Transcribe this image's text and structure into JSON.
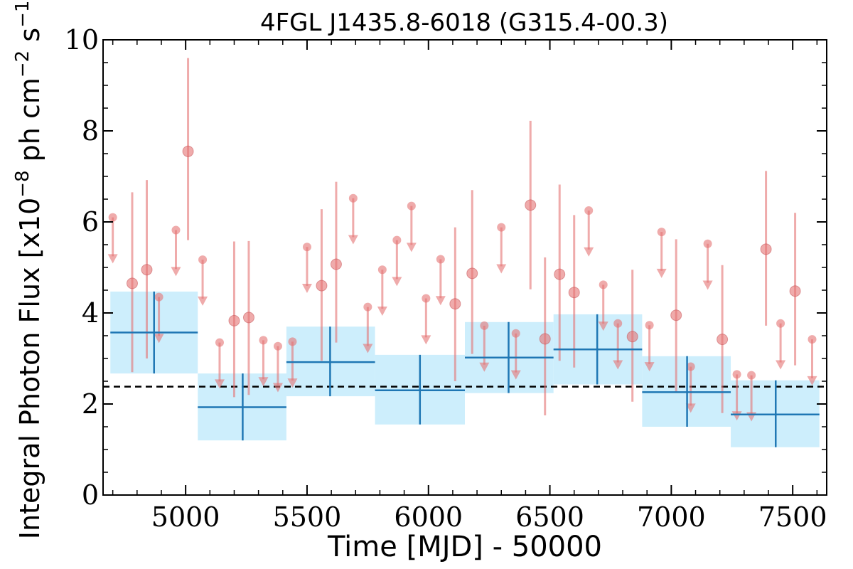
{
  "chart_data": {
    "type": "scatter",
    "title": "4FGL J1435.8-6018 (G315.4-00.3)",
    "xlabel": "Time [MJD] - 50000",
    "ylabel": "Integral Photon Flux [x10",
    "ylabel_exponent": "−8",
    "ylabel_unit": " ph cm",
    "ylabel_unit_exponent": "−2",
    "ylabel_tail": " s",
    "ylabel_tail_exponent": "−1",
    "ylabel_close": "]",
    "xlim": [
      4660,
      7640
    ],
    "ylim": [
      0,
      10
    ],
    "x_ticks": [
      5000,
      5500,
      6000,
      6500,
      7000,
      7500
    ],
    "y_ticks": [
      0,
      2,
      4,
      6,
      8,
      10
    ],
    "reference_level": 2.38,
    "colors": {
      "bins": "#1f77b4",
      "bin_band": "#cdeefc",
      "points": "#e57373",
      "reference": "#000000"
    },
    "binned_flux": [
      {
        "x_start": 4690,
        "x_end": 5050,
        "x": 4870,
        "y": 3.57,
        "y_low": 2.67,
        "y_high": 4.47
      },
      {
        "x_start": 5050,
        "x_end": 5415,
        "x": 5235,
        "y": 1.93,
        "y_low": 1.2,
        "y_high": 2.67
      },
      {
        "x_start": 5415,
        "x_end": 5780,
        "x": 5595,
        "y": 2.92,
        "y_low": 2.17,
        "y_high": 3.7
      },
      {
        "x_start": 5780,
        "x_end": 6150,
        "x": 5965,
        "y": 2.3,
        "y_low": 1.55,
        "y_high": 3.08
      },
      {
        "x_start": 6150,
        "x_end": 6515,
        "x": 6330,
        "y": 3.02,
        "y_low": 2.24,
        "y_high": 3.8
      },
      {
        "x_start": 6515,
        "x_end": 6880,
        "x": 6695,
        "y": 3.2,
        "y_low": 2.43,
        "y_high": 3.97
      },
      {
        "x_start": 6880,
        "x_end": 7245,
        "x": 7065,
        "y": 2.26,
        "y_low": 1.5,
        "y_high": 3.05
      },
      {
        "x_start": 7245,
        "x_end": 7610,
        "x": 7430,
        "y": 1.77,
        "y_low": 1.05,
        "y_high": 2.52
      }
    ],
    "detections": [
      {
        "x": 4780,
        "y": 4.65,
        "y_low": 2.7,
        "y_high": 6.65
      },
      {
        "x": 4840,
        "y": 4.95,
        "y_low": 3.0,
        "y_high": 6.92
      },
      {
        "x": 5010,
        "y": 7.55,
        "y_low": 5.6,
        "y_high": 9.6
      },
      {
        "x": 5200,
        "y": 3.83,
        "y_low": 2.15,
        "y_high": 5.57
      },
      {
        "x": 5260,
        "y": 3.9,
        "y_low": 2.2,
        "y_high": 5.58
      },
      {
        "x": 5560,
        "y": 4.6,
        "y_low": 2.95,
        "y_high": 6.28
      },
      {
        "x": 5620,
        "y": 5.07,
        "y_low": 3.35,
        "y_high": 6.88
      },
      {
        "x": 6110,
        "y": 4.2,
        "y_low": 2.5,
        "y_high": 5.88
      },
      {
        "x": 6180,
        "y": 4.87,
        "y_low": 3.1,
        "y_high": 6.7
      },
      {
        "x": 6420,
        "y": 6.37,
        "y_low": 4.52,
        "y_high": 8.22
      },
      {
        "x": 6480,
        "y": 3.43,
        "y_low": 1.75,
        "y_high": 5.22
      },
      {
        "x": 6540,
        "y": 4.85,
        "y_low": 2.95,
        "y_high": 6.82
      },
      {
        "x": 6600,
        "y": 4.45,
        "y_low": 2.8,
        "y_high": 6.15
      },
      {
        "x": 6840,
        "y": 3.48,
        "y_low": 2.05,
        "y_high": 4.95
      },
      {
        "x": 7020,
        "y": 3.95,
        "y_low": 2.25,
        "y_high": 5.62
      },
      {
        "x": 7210,
        "y": 3.42,
        "y_low": 1.8,
        "y_high": 5.05
      },
      {
        "x": 7390,
        "y": 5.4,
        "y_low": 3.72,
        "y_high": 7.12
      },
      {
        "x": 7510,
        "y": 4.48,
        "y_low": 2.85,
        "y_high": 6.2
      }
    ],
    "upper_limits": [
      {
        "x": 4700,
        "y": 6.1
      },
      {
        "x": 4890,
        "y": 4.35
      },
      {
        "x": 4960,
        "y": 5.82
      },
      {
        "x": 5070,
        "y": 5.17
      },
      {
        "x": 5140,
        "y": 3.35
      },
      {
        "x": 5320,
        "y": 3.4
      },
      {
        "x": 5380,
        "y": 3.27
      },
      {
        "x": 5440,
        "y": 3.37
      },
      {
        "x": 5500,
        "y": 5.45
      },
      {
        "x": 5690,
        "y": 6.52
      },
      {
        "x": 5750,
        "y": 4.13
      },
      {
        "x": 5810,
        "y": 4.95
      },
      {
        "x": 5870,
        "y": 5.6
      },
      {
        "x": 5930,
        "y": 6.35
      },
      {
        "x": 5990,
        "y": 4.32
      },
      {
        "x": 6050,
        "y": 5.18
      },
      {
        "x": 6230,
        "y": 3.72
      },
      {
        "x": 6300,
        "y": 5.88
      },
      {
        "x": 6360,
        "y": 3.55
      },
      {
        "x": 6660,
        "y": 6.25
      },
      {
        "x": 6720,
        "y": 4.62
      },
      {
        "x": 6780,
        "y": 3.77
      },
      {
        "x": 6910,
        "y": 3.73
      },
      {
        "x": 6960,
        "y": 5.78
      },
      {
        "x": 7080,
        "y": 2.82
      },
      {
        "x": 7150,
        "y": 5.52
      },
      {
        "x": 7270,
        "y": 2.65
      },
      {
        "x": 7330,
        "y": 2.63
      },
      {
        "x": 7450,
        "y": 3.77
      },
      {
        "x": 7580,
        "y": 3.42
      }
    ],
    "grid": false,
    "legend": "none"
  }
}
